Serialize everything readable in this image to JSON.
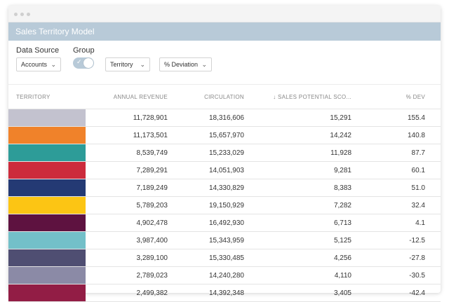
{
  "window": {
    "title": "Sales Territory Model"
  },
  "controls": {
    "data_source_label": "Data Source",
    "data_source_value": "Accounts",
    "group_label": "Group",
    "group_toggle": true,
    "group_by_value": "Territory",
    "metric_value": "% Deviation"
  },
  "table": {
    "columns": [
      "TERRITORY",
      "ANNUAL REVENUE",
      "CIRCULATION",
      "↓ SALES POTENTIAL SCO...",
      "% DEV"
    ],
    "rows": [
      {
        "color": "#c3c2cf",
        "revenue": "11,728,901",
        "circulation": "18,316,606",
        "sales_potential": "15,291",
        "dev": "155.4"
      },
      {
        "color": "#f0822a",
        "revenue": "11,173,501",
        "circulation": "15,657,970",
        "sales_potential": "14,242",
        "dev": "140.8"
      },
      {
        "color": "#2d9c98",
        "revenue": "8,539,749",
        "circulation": "15,233,029",
        "sales_potential": "11,928",
        "dev": "87.7"
      },
      {
        "color": "#cc2b3c",
        "revenue": "7,289,291",
        "circulation": "14,051,903",
        "sales_potential": "9,281",
        "dev": "60.1"
      },
      {
        "color": "#243a74",
        "revenue": "7,189,249",
        "circulation": "14,330,829",
        "sales_potential": "8,383",
        "dev": "51.0"
      },
      {
        "color": "#fcc514",
        "revenue": "5,789,203",
        "circulation": "19,150,929",
        "sales_potential": "7,282",
        "dev": "32.4"
      },
      {
        "color": "#5e1240",
        "revenue": "4,902,478",
        "circulation": "16,492,930",
        "sales_potential": "6,713",
        "dev": "4.1"
      },
      {
        "color": "#73c0c9",
        "revenue": "3,987,400",
        "circulation": "15,343,959",
        "sales_potential": "5,125",
        "dev": "-12.5"
      },
      {
        "color": "#4f4e72",
        "revenue": "3,289,100",
        "circulation": "15,330,485",
        "sales_potential": "4,256",
        "dev": "-27.8"
      },
      {
        "color": "#8b8aa6",
        "revenue": "2,789,023",
        "circulation": "14,240,280",
        "sales_potential": "4,110",
        "dev": "-30.5"
      },
      {
        "color": "#921d45",
        "revenue": "2,499,382",
        "circulation": "14,392,348",
        "sales_potential": "3,405",
        "dev": "-42.4"
      }
    ]
  }
}
